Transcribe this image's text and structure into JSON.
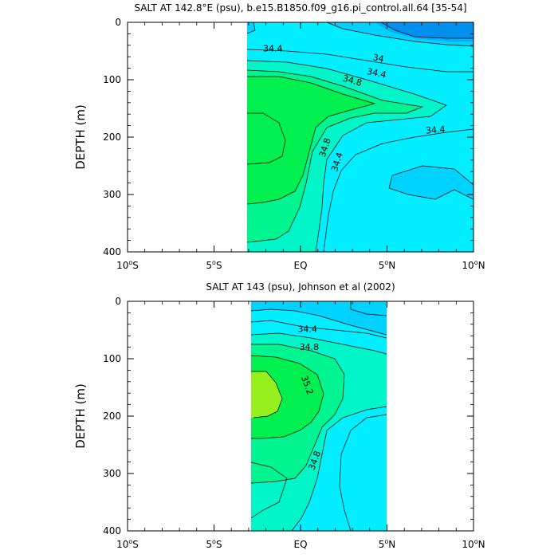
{
  "chart_data": [
    {
      "type": "contour",
      "title": "SALT AT 142.8°E (psu), b.e15.B1850.f09_g16.pi_control.all.64 [35-54]",
      "ylabel": "DEPTH (m)",
      "xlim": [
        -10,
        10
      ],
      "ylim": [
        0,
        400
      ],
      "y_inverted": true,
      "data_extent_x": [
        -3,
        10
      ],
      "xticks": [
        {
          "value": -10,
          "main": "10",
          "unit": "S"
        },
        {
          "value": -5,
          "main": "5",
          "unit": "S"
        },
        {
          "value": 0,
          "main": "EQ",
          "unit": ""
        },
        {
          "value": 5,
          "main": "5",
          "unit": "N"
        },
        {
          "value": 10,
          "main": "10",
          "unit": "N"
        }
      ],
      "yticks": [
        "0",
        "100",
        "200",
        "300",
        "400"
      ],
      "contour_interval": 0.2,
      "contour_labels": [
        {
          "text": "34.4",
          "x": -1.6,
          "y": 45,
          "angle": 0
        },
        {
          "text": "34",
          "x": 4.5,
          "y": 62,
          "angle": 12
        },
        {
          "text": "34.4",
          "x": 4.4,
          "y": 88,
          "angle": 12
        },
        {
          "text": "34.8",
          "x": 3.0,
          "y": 101,
          "angle": 16
        },
        {
          "text": "34.4",
          "x": 7.8,
          "y": 187,
          "angle": -4
        },
        {
          "text": "34.8",
          "x": 1.4,
          "y": 218,
          "angle": -72
        },
        {
          "text": "34.4",
          "x": 2.1,
          "y": 243,
          "angle": -72
        }
      ]
    },
    {
      "type": "contour",
      "title": "SALT AT 143 (psu), Johnson et al (2002)",
      "ylabel": "DEPTH (m)",
      "xlim": [
        -10,
        10
      ],
      "ylim": [
        0,
        400
      ],
      "y_inverted": true,
      "data_extent_x": [
        -2.8,
        5
      ],
      "xticks": [
        {
          "value": -10,
          "main": "10",
          "unit": "S"
        },
        {
          "value": -5,
          "main": "5",
          "unit": "S"
        },
        {
          "value": 0,
          "main": "EQ",
          "unit": ""
        },
        {
          "value": 5,
          "main": "5",
          "unit": "N"
        },
        {
          "value": 10,
          "main": "10",
          "unit": "N"
        }
      ],
      "yticks": [
        "0",
        "100",
        "200",
        "300",
        "400"
      ],
      "contour_interval": 0.2,
      "contour_labels": [
        {
          "text": "34.4",
          "x": 0.4,
          "y": 48,
          "angle": 0
        },
        {
          "text": "34.8",
          "x": 0.5,
          "y": 79,
          "angle": 0
        },
        {
          "text": "35.2",
          "x": 0.4,
          "y": 146,
          "angle": 70
        },
        {
          "text": "34.8",
          "x": 0.8,
          "y": 277,
          "angle": -70
        }
      ]
    }
  ],
  "colors": {
    "level_34_0": "#0090ee",
    "level_34_2": "#00b0ff",
    "level_34_4": "#00d2ff",
    "level_34_6": "#00eeff",
    "level_34_8": "#00f5c8",
    "level_35_0": "#00f590",
    "level_35_2": "#00f050",
    "level_35_4": "#96f01e",
    "line": "#000000"
  }
}
